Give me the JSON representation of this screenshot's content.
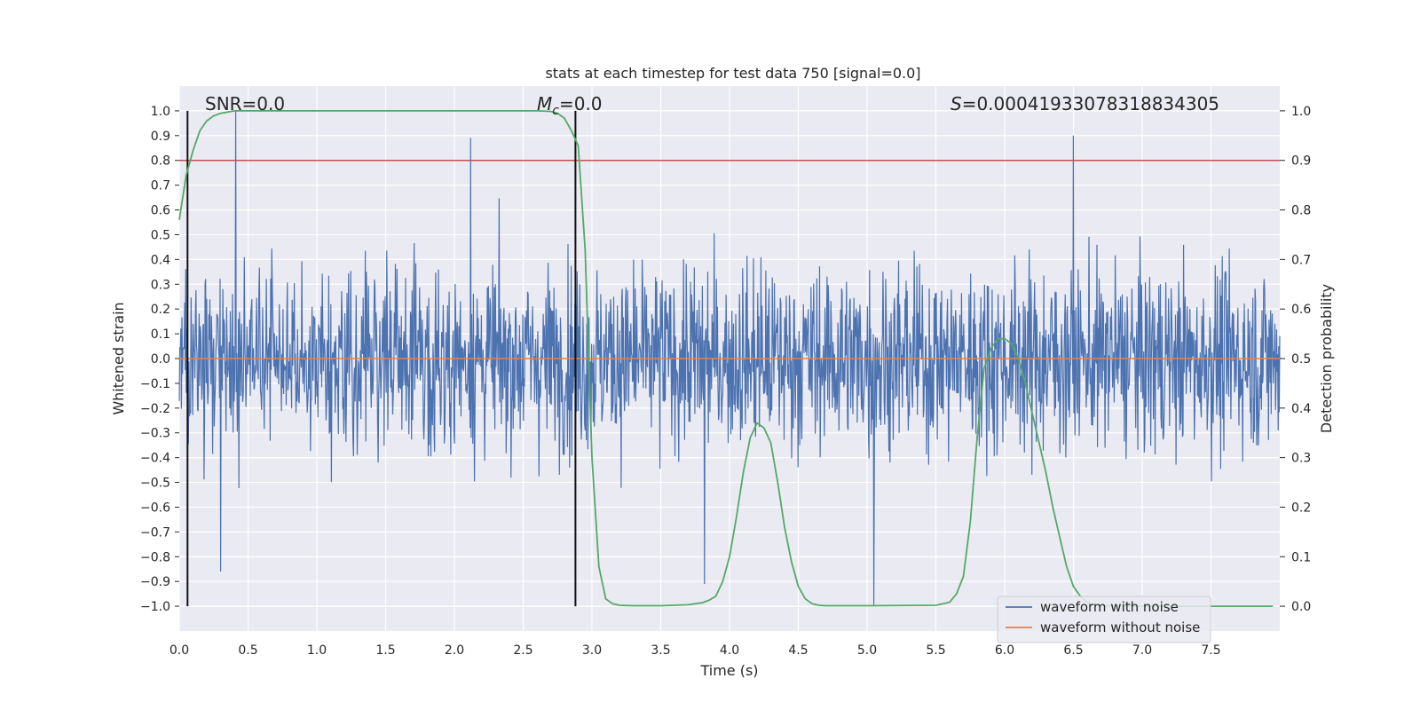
{
  "chart_data": {
    "type": "line",
    "title": "stats at each timestep for test data 750 [signal=0.0]",
    "xlabel": "Time (s)",
    "ylabel": "Whitened strain",
    "y2label": "Detection probability",
    "xlim": [
      0.0,
      8.0
    ],
    "ylim": [
      -1.1,
      1.1
    ],
    "y2lim": [
      -0.05,
      1.05
    ],
    "x_ticks": [
      0.0,
      0.5,
      1.0,
      1.5,
      2.0,
      2.5,
      3.0,
      3.5,
      4.0,
      4.5,
      5.0,
      5.5,
      6.0,
      6.5,
      7.0,
      7.5
    ],
    "x_tick_labels": [
      "0.0",
      "0.5",
      "1.0",
      "1.5",
      "2.0",
      "2.5",
      "3.0",
      "3.5",
      "4.0",
      "4.5",
      "5.0",
      "5.5",
      "6.0",
      "6.5",
      "7.0",
      "7.5"
    ],
    "y_ticks": [
      1.0,
      0.9,
      0.8,
      0.7,
      0.6,
      0.5,
      0.4,
      0.3,
      0.2,
      0.1,
      0.0,
      -0.1,
      -0.2,
      -0.3,
      -0.4,
      -0.5,
      -0.6,
      -0.7,
      -0.8,
      -0.9,
      -1.0
    ],
    "y_tick_labels": [
      "1.0",
      "0.9",
      "0.8",
      "0.7",
      "0.6",
      "0.5",
      "0.4",
      "0.3",
      "0.2",
      "0.1",
      "0.0",
      "−0.1",
      "−0.2",
      "−0.3",
      "−0.4",
      "−0.5",
      "−0.6",
      "−0.7",
      "−0.8",
      "−0.9",
      "−1.0"
    ],
    "y2_ticks": [
      1.0,
      0.9,
      0.8,
      0.7,
      0.6,
      0.5,
      0.4,
      0.3,
      0.2,
      0.1,
      0.0
    ],
    "y2_tick_labels": [
      "1.0",
      "0.9",
      "0.8",
      "0.7",
      "0.6",
      "0.5",
      "0.4",
      "0.3",
      "0.2",
      "0.1",
      "0.0"
    ],
    "grid": true,
    "annotations": {
      "snr": "SNR=0.0",
      "mc_symbol": "M",
      "mc_subscript": "c",
      "mc_value": "=0.0",
      "s_symbol": "S",
      "s_value": "=0.00041933078318834305"
    },
    "vertical_lines_x": [
      0.06,
      2.88
    ],
    "threshold_y2": 0.9,
    "series": [
      {
        "name": "waveform with noise",
        "color": "#4c72b0",
        "kind": "noise",
        "n_samples": 2048,
        "amplitude_range": [
          -1.0,
          1.0
        ],
        "notable_peaks": [
          {
            "x": 0.41,
            "y": 1.0
          },
          {
            "x": 2.12,
            "y": 0.89
          },
          {
            "x": 6.5,
            "y": 0.9
          },
          {
            "x": 0.3,
            "y": -0.86
          },
          {
            "x": 5.05,
            "y": -1.0
          },
          {
            "x": 3.82,
            "y": -0.91
          }
        ]
      },
      {
        "name": "waveform without noise",
        "color": "#dd8452",
        "kind": "constant",
        "value": 0.0
      },
      {
        "name": "Detection probability",
        "color": "#55a868",
        "axis": "right",
        "x": [
          0.0,
          0.05,
          0.1,
          0.15,
          0.2,
          0.25,
          0.3,
          0.4,
          0.5,
          1.0,
          1.5,
          2.0,
          2.5,
          2.6,
          2.7,
          2.75,
          2.8,
          2.85,
          2.9,
          2.95,
          3.0,
          3.05,
          3.1,
          3.15,
          3.2,
          3.3,
          3.5,
          3.7,
          3.8,
          3.85,
          3.9,
          3.95,
          4.0,
          4.05,
          4.1,
          4.15,
          4.2,
          4.25,
          4.3,
          4.35,
          4.4,
          4.45,
          4.5,
          4.55,
          4.6,
          4.65,
          4.7,
          4.8,
          5.0,
          5.5,
          5.6,
          5.65,
          5.7,
          5.75,
          5.8,
          5.85,
          5.9,
          5.95,
          6.0,
          6.05,
          6.1,
          6.15,
          6.2,
          6.25,
          6.3,
          6.35,
          6.4,
          6.45,
          6.5,
          6.55,
          6.6,
          6.65,
          6.7,
          6.8,
          7.0,
          7.5,
          7.95
        ],
        "y": [
          0.78,
          0.87,
          0.92,
          0.96,
          0.98,
          0.99,
          0.995,
          1.0,
          1.0,
          1.0,
          1.0,
          1.0,
          1.0,
          1.0,
          0.999,
          0.995,
          0.985,
          0.96,
          0.93,
          0.72,
          0.3,
          0.08,
          0.015,
          0.005,
          0.002,
          0.001,
          0.001,
          0.003,
          0.007,
          0.012,
          0.02,
          0.05,
          0.1,
          0.18,
          0.27,
          0.34,
          0.37,
          0.36,
          0.33,
          0.25,
          0.16,
          0.09,
          0.04,
          0.015,
          0.005,
          0.002,
          0.001,
          0.001,
          0.001,
          0.002,
          0.008,
          0.025,
          0.06,
          0.17,
          0.34,
          0.48,
          0.52,
          0.54,
          0.54,
          0.53,
          0.5,
          0.45,
          0.39,
          0.33,
          0.27,
          0.2,
          0.14,
          0.08,
          0.04,
          0.02,
          0.008,
          0.003,
          0.001,
          0.001,
          0.0,
          0.0,
          0.0
        ]
      }
    ],
    "legend": {
      "placement": "lower-right",
      "entries": [
        "waveform with noise",
        "waveform without noise"
      ]
    }
  }
}
